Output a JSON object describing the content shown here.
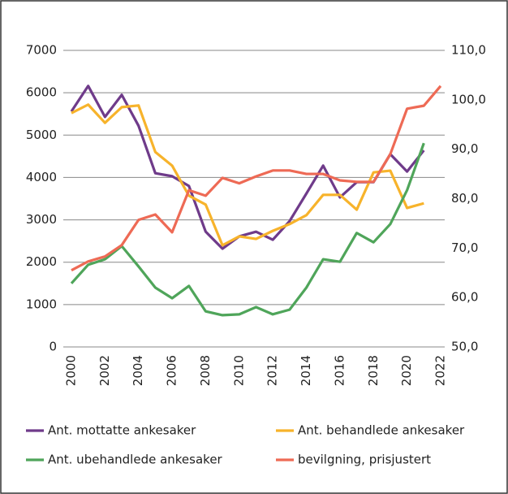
{
  "chart_data": {
    "type": "line",
    "x": [
      2000,
      2001,
      2002,
      2003,
      2004,
      2005,
      2006,
      2007,
      2008,
      2009,
      2010,
      2011,
      2012,
      2013,
      2014,
      2015,
      2016,
      2017,
      2018,
      2019,
      2020,
      2021,
      2022
    ],
    "xlim": [
      2000,
      2022
    ],
    "xticks": [
      2000,
      2002,
      2004,
      2006,
      2008,
      2010,
      2012,
      2014,
      2016,
      2018,
      2020,
      2022
    ],
    "ylim": [
      0,
      7000
    ],
    "yticks": [
      0,
      1000,
      2000,
      3000,
      4000,
      5000,
      6000,
      7000
    ],
    "y2lim": [
      50,
      110
    ],
    "y2ticks": [
      {
        "value": 50,
        "label": "50,0"
      },
      {
        "value": 60,
        "label": "60,0"
      },
      {
        "value": 70,
        "label": "70,0"
      },
      {
        "value": 80,
        "label": "80,0"
      },
      {
        "value": 90,
        "label": "90,0"
      },
      {
        "value": 100,
        "label": "100,0"
      },
      {
        "value": 110,
        "label": "110,0"
      }
    ],
    "grid": true,
    "legend": "bottom",
    "series": [
      {
        "name": "Ant. mottatte ankesaker",
        "color": "#6f3b8a",
        "values": [
          5560,
          6160,
          5430,
          5950,
          5220,
          4100,
          4030,
          3800,
          2720,
          2320,
          2610,
          2720,
          2530,
          2970,
          3620,
          4280,
          3530,
          3890,
          3890,
          4550,
          4140,
          4640,
          null
        ]
      },
      {
        "name": "Ant. behandlede ankesaker",
        "color": "#f7b32b",
        "values": [
          5520,
          5720,
          5290,
          5660,
          5700,
          4600,
          4280,
          3570,
          3360,
          2400,
          2610,
          2550,
          2740,
          2900,
          3110,
          3590,
          3590,
          3240,
          4120,
          4160,
          3280,
          3390,
          null
        ]
      },
      {
        "name": "Ant. ubehandlede ankesaker",
        "color": "#4fa55a",
        "values": [
          1500,
          1940,
          2070,
          2380,
          1900,
          1400,
          1150,
          1440,
          840,
          750,
          770,
          940,
          770,
          880,
          1400,
          2070,
          2010,
          2690,
          2470,
          2900,
          3700,
          4810,
          null
        ]
      },
      {
        "name": "bevilgning, prisjustert",
        "color": "#ee6a55",
        "axis": "y2",
        "values": [
          65.5,
          67.3,
          68.3,
          70.6,
          75.7,
          76.8,
          73.2,
          81.7,
          80.6,
          84.2,
          83.1,
          84.5,
          85.7,
          85.7,
          85.0,
          85.0,
          83.7,
          83.4,
          83.4,
          89.0,
          98.2,
          98.8,
          102.8
        ]
      }
    ]
  }
}
